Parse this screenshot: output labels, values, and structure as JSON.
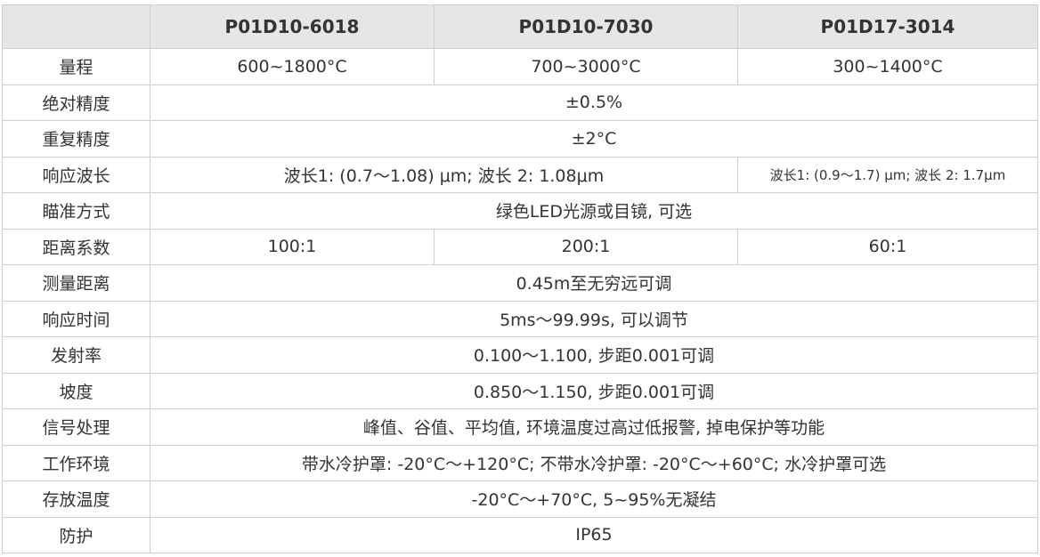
{
  "header": {
    "models": [
      "P01D10-6018",
      "P01D10-7030",
      "P01D17-3014"
    ]
  },
  "rows": {
    "range": {
      "label": "量程",
      "values": [
        "600~1800°C",
        "700~3000°C",
        "300~1400°C"
      ]
    },
    "absolute_accuracy": {
      "label": "绝对精度",
      "value": "±0.5%"
    },
    "repeatability": {
      "label": "重复精度",
      "value": "±2°C"
    },
    "wavelength": {
      "label": "响应波长",
      "value_12": "波长1: (0.7～1.08) μm;  波长 2: 1.08μm",
      "value_3": "波长1: (0.9～1.7) μm;  波长 2: 1.7μm"
    },
    "aiming": {
      "label": "瞄准方式",
      "value": "绿色LED光源或目镜, 可选"
    },
    "distance_ratio": {
      "label": "距离系数",
      "values": [
        "100:1",
        "200:1",
        "60:1"
      ]
    },
    "measure_distance": {
      "label": "测量距离",
      "value": "0.45m至无穷远可调"
    },
    "response_time": {
      "label": "响应时间",
      "value": "5ms～99.99s, 可以调节"
    },
    "emissivity": {
      "label": "发射率",
      "value": "0.100～1.100, 步距0.001可调"
    },
    "slope": {
      "label": "坡度",
      "value": "0.850～1.150, 步距0.001可调"
    },
    "signal": {
      "label": "信号处理",
      "value": "峰值、谷值、平均值, 环境温度过高过低报警, 掉电保护等功能"
    },
    "work_env": {
      "label": "工作环境",
      "value": "带水冷护罩: -20°C～+120°C; 不带水冷护罩: -20°C～+60°C; 水冷护罩可选"
    },
    "storage": {
      "label": "存放温度",
      "value": "-20°C～+70°C, 5~95%无凝结"
    },
    "protection": {
      "label": "防护",
      "value": "IP65"
    }
  }
}
